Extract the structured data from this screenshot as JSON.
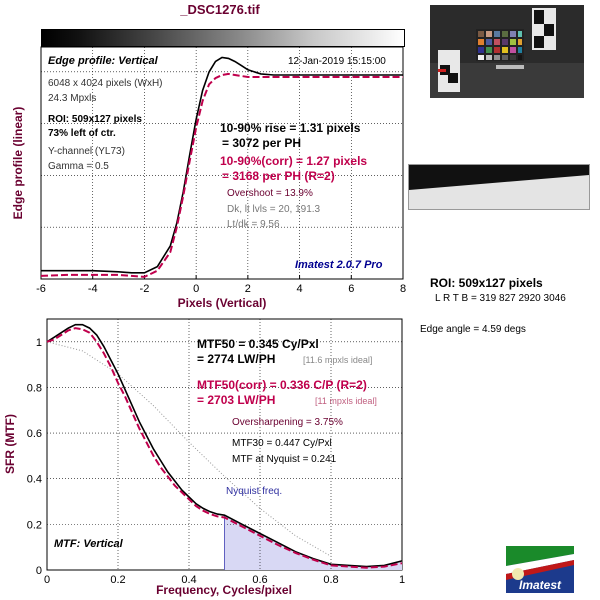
{
  "file_name": "_DSC1276.tif",
  "colors": {
    "measured": "#000000",
    "corrected": "#c0004c",
    "label_purple": "#6a0030",
    "nyquist_fill": "#d8d8f4",
    "nyquist_label": "#3030a0"
  },
  "edge_panel": {
    "heading": "Edge profile: Vertical",
    "timestamp": "12-Jan-2019 15:15:00",
    "info": [
      "6048 x 4024 pixels (WxH)",
      "24.3 Mpxls"
    ],
    "roi_bold": [
      "ROI: 509x127 pixels",
      "73% left of ctr."
    ],
    "channel": [
      "Y-channel  (YL73)",
      "Gamma = 0.5"
    ],
    "rise_black": [
      "10-90% rise = 1.31 pixels",
      "= 3072 per PH"
    ],
    "rise_corr": [
      "10-90%(corr) = 1.27 pixels",
      "= 3168 per PH    (R=2)"
    ],
    "overshoot": "Overshoot = 13.9%",
    "dk_levels": [
      "Dk, lt lvls = 20, 191.3",
      "Lt/dk = 9.56"
    ],
    "version": "Imatest 2.0.7 Pro"
  },
  "mtf_panel": {
    "heading": "MTF: Vertical",
    "mtf50_black": [
      "MTF50 = 0.345 Cy/Pxl",
      "= 2774 LW/PH"
    ],
    "mtf50_black_ideal": "[11.6 mpxls ideal]",
    "mtf50_corr": [
      "MTF50(corr) = 0.336 C/P  (R=2)",
      "= 2703 LW/PH"
    ],
    "mtf50_corr_ideal": "[11 mpxls ideal]",
    "oversharpening": "Oversharpening = 3.75%",
    "mtf30": "MTF30 = 0.447 Cy/Pxl",
    "mtf_nyquist": "MTF at Nyquist = 0.241",
    "nyquist_label": "Nyquist freq."
  },
  "side": {
    "roi_title": "ROI: 509x127 pixels",
    "lrtb": "L R  T B = 319 827   2920 3046",
    "edge_angle": "Edge angle = 4.59 degs"
  },
  "logo_text": "Imatest",
  "chart_data": [
    {
      "type": "line",
      "xlabel": "Pixels (Vertical)",
      "ylabel": "Edge profile (linear)",
      "xlim": [
        -6,
        8
      ],
      "ylim": [
        0,
        1.12
      ],
      "xticks": [
        -6,
        -4,
        -2,
        0,
        2,
        4,
        6,
        8
      ],
      "series": [
        {
          "x": [
            -6,
            -5,
            -4,
            -3,
            -2.5,
            -2,
            -1.5,
            -1,
            -0.75,
            -0.5,
            -0.25,
            0,
            0.25,
            0.5,
            0.75,
            1,
            1.25,
            1.5,
            1.75,
            2,
            2.5,
            3,
            3.5,
            4,
            5,
            6,
            7,
            8
          ],
          "y": [
            0.04,
            0.04,
            0.04,
            0.035,
            0.03,
            0.03,
            0.06,
            0.16,
            0.27,
            0.42,
            0.6,
            0.77,
            0.91,
            1.0,
            1.05,
            1.07,
            1.065,
            1.05,
            1.03,
            1.01,
            0.99,
            0.985,
            0.985,
            0.985,
            0.985,
            0.985,
            0.985,
            0.985
          ]
        },
        {
          "x": [
            -6,
            -5,
            -4,
            -3,
            -2.5,
            -2,
            -1.5,
            -1,
            -0.75,
            -0.5,
            -0.25,
            0,
            0.25,
            0.5,
            0.75,
            1,
            1.25,
            1.5,
            2,
            2.5,
            3,
            4,
            5,
            6,
            7,
            8
          ],
          "y": [
            0.015,
            0.02,
            0.02,
            0.02,
            0.015,
            0.01,
            0.04,
            0.13,
            0.25,
            0.4,
            0.57,
            0.73,
            0.86,
            0.94,
            0.97,
            0.985,
            0.99,
            0.985,
            0.975,
            0.975,
            0.975,
            0.975,
            0.975,
            0.975,
            0.975,
            0.975
          ]
        }
      ]
    },
    {
      "type": "line",
      "xlabel": "Frequency, Cycles/pixel",
      "ylabel": "SFR (MTF)",
      "xlim": [
        0,
        1
      ],
      "ylim": [
        0,
        1.1
      ],
      "xticks": [
        0,
        0.2,
        0.4,
        0.6,
        0.8,
        1
      ],
      "yticks": [
        0,
        0.2,
        0.4,
        0.6,
        0.8,
        1
      ],
      "nyquist": 0.5,
      "series": [
        {
          "x": [
            0,
            0.02,
            0.04,
            0.06,
            0.08,
            0.1,
            0.12,
            0.14,
            0.16,
            0.18,
            0.2,
            0.22,
            0.24,
            0.26,
            0.28,
            0.3,
            0.32,
            0.34,
            0.36,
            0.38,
            0.4,
            0.42,
            0.44,
            0.46,
            0.48,
            0.5,
            0.55,
            0.6,
            0.65,
            0.7,
            0.75,
            0.8,
            0.85,
            0.9,
            0.95,
            1.0
          ],
          "y": [
            1.0,
            1.02,
            1.04,
            1.06,
            1.075,
            1.075,
            1.06,
            1.03,
            0.98,
            0.92,
            0.86,
            0.79,
            0.72,
            0.65,
            0.59,
            0.53,
            0.48,
            0.43,
            0.39,
            0.35,
            0.32,
            0.29,
            0.27,
            0.255,
            0.245,
            0.24,
            0.2,
            0.16,
            0.12,
            0.08,
            0.05,
            0.025,
            0.02,
            0.015,
            0.02,
            0.04
          ]
        },
        {
          "x": [
            0,
            0.02,
            0.04,
            0.06,
            0.08,
            0.1,
            0.12,
            0.14,
            0.16,
            0.18,
            0.2,
            0.22,
            0.24,
            0.26,
            0.28,
            0.3,
            0.32,
            0.34,
            0.36,
            0.38,
            0.4,
            0.42,
            0.44,
            0.46,
            0.48,
            0.5,
            0.55,
            0.6,
            0.65,
            0.7,
            0.75,
            0.8,
            0.85,
            0.9,
            0.95,
            1.0
          ],
          "y": [
            1.0,
            1.01,
            1.03,
            1.05,
            1.06,
            1.055,
            1.04,
            1.0,
            0.95,
            0.89,
            0.82,
            0.76,
            0.69,
            0.62,
            0.56,
            0.5,
            0.45,
            0.41,
            0.37,
            0.34,
            0.31,
            0.28,
            0.26,
            0.245,
            0.235,
            0.23,
            0.19,
            0.15,
            0.11,
            0.075,
            0.045,
            0.02,
            0.015,
            0.01,
            0.015,
            0.03
          ]
        },
        {
          "x": [
            0,
            0.1,
            0.2,
            0.3,
            0.4,
            0.5,
            0.6,
            0.7,
            0.8
          ],
          "y": [
            1.0,
            0.96,
            0.86,
            0.72,
            0.56,
            0.41,
            0.27,
            0.15,
            0.06
          ]
        }
      ]
    }
  ]
}
